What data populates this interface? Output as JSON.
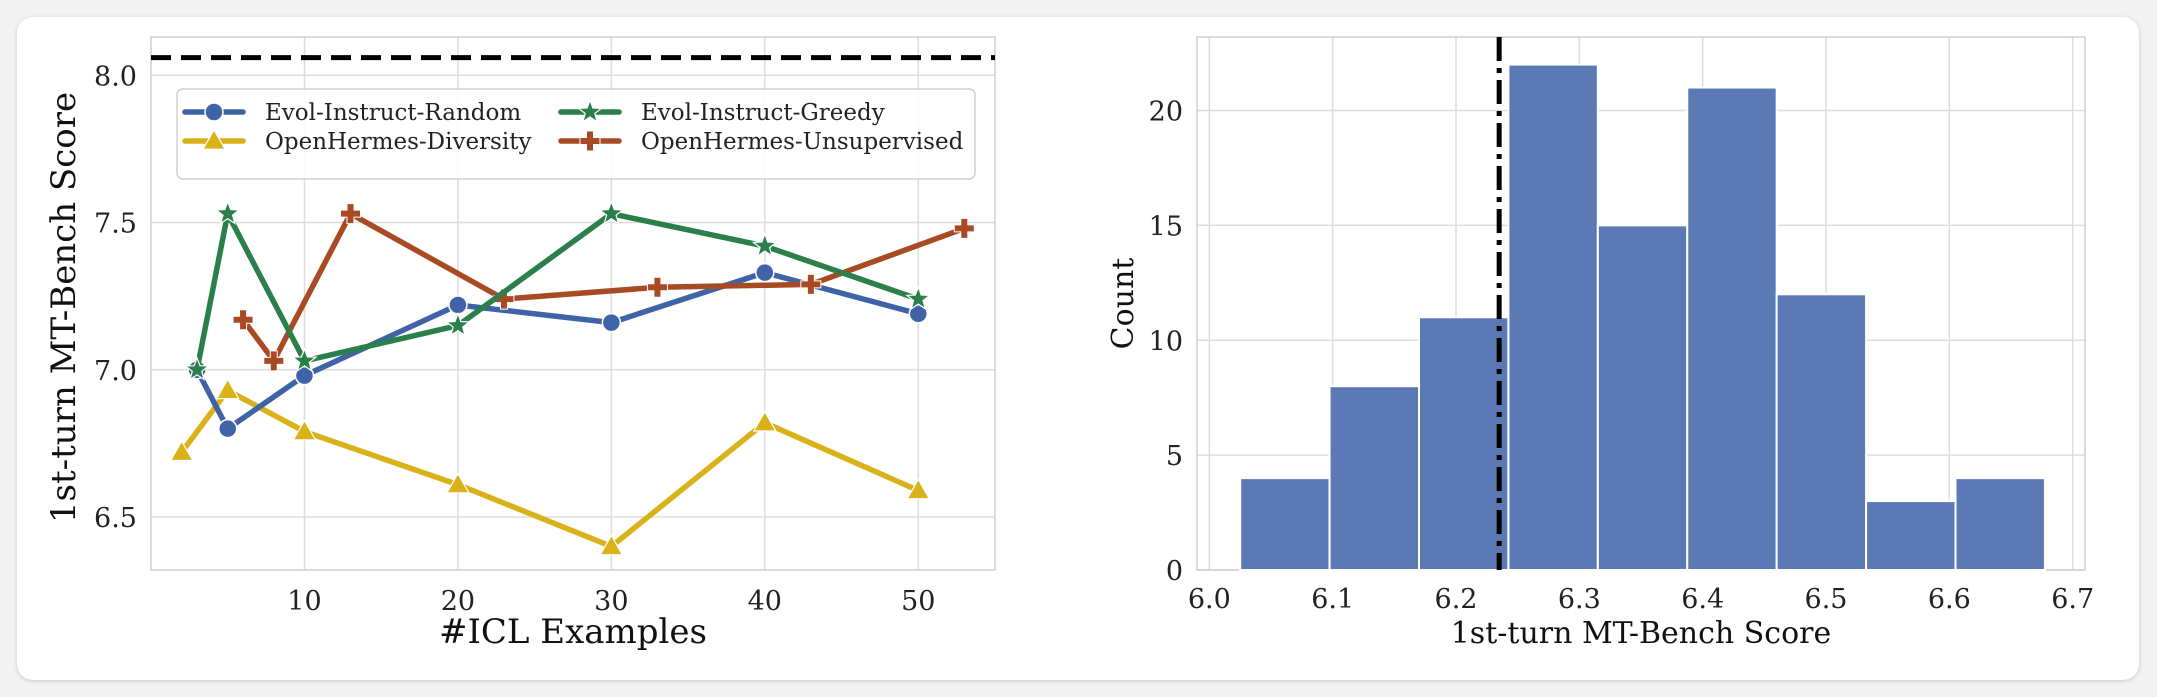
{
  "chart_data": [
    {
      "type": "line",
      "title": "",
      "xlabel": "#ICL Examples",
      "ylabel": "1st-turn MT-Bench Score",
      "xlim": [
        0,
        55
      ],
      "ylim": [
        6.32,
        8.13
      ],
      "xticks": [
        10,
        20,
        30,
        40,
        50
      ],
      "xtick_labels": [
        "10",
        "20",
        "30",
        "40",
        "50"
      ],
      "yticks": [
        6.5,
        7.0,
        7.5,
        8.0
      ],
      "ytick_labels": [
        "6.5",
        "7.0",
        "7.5",
        "8.0"
      ],
      "grid": true,
      "legend_position": "top",
      "reference_line": {
        "orientation": "horizontal",
        "y": 8.06,
        "style": "dashed",
        "color": "#000000"
      },
      "series": [
        {
          "name": "Evol-Instruct-Random",
          "color": "#4063a8",
          "marker": "circle",
          "x": [
            3,
            5,
            10,
            20,
            30,
            40,
            50
          ],
          "y": [
            7.0,
            6.8,
            6.98,
            7.22,
            7.16,
            7.33,
            7.19
          ]
        },
        {
          "name": "Evol-Instruct-Greedy",
          "color": "#2a7f4a",
          "marker": "star",
          "x": [
            3,
            5,
            10,
            20,
            30,
            40,
            50
          ],
          "y": [
            7.0,
            7.53,
            7.03,
            7.15,
            7.53,
            7.42,
            7.24
          ]
        },
        {
          "name": "OpenHermes-Diversity",
          "color": "#d9b21a",
          "marker": "triangle",
          "x": [
            2,
            5,
            10,
            20,
            30,
            40,
            50
          ],
          "y": [
            6.72,
            6.93,
            6.79,
            6.61,
            6.4,
            6.82,
            6.59
          ]
        },
        {
          "name": "OpenHermes-Unsupervised",
          "color": "#a84a24",
          "marker": "plus",
          "x": [
            6,
            8,
            13,
            23,
            33,
            43,
            53
          ],
          "y": [
            7.17,
            7.03,
            7.53,
            7.24,
            7.28,
            7.29,
            7.48
          ]
        }
      ]
    },
    {
      "type": "bar",
      "subtype": "histogram",
      "title": "",
      "xlabel": "1st-turn MT-Bench Score",
      "ylabel": "Count",
      "xlim": [
        5.99,
        6.71
      ],
      "ylim": [
        0,
        23.2
      ],
      "xticks": [
        6.0,
        6.1,
        6.2,
        6.3,
        6.4,
        6.5,
        6.6,
        6.7
      ],
      "xtick_labels": [
        "6.0",
        "6.1",
        "6.2",
        "6.3",
        "6.4",
        "6.5",
        "6.6",
        "6.7"
      ],
      "yticks": [
        0,
        5,
        10,
        15,
        20
      ],
      "ytick_labels": [
        "0",
        "5",
        "10",
        "15",
        "20"
      ],
      "grid": true,
      "bar_color": "#5b7ab5",
      "bin_edges": [
        6.025,
        6.0975,
        6.17,
        6.2425,
        6.315,
        6.3875,
        6.46,
        6.5325,
        6.605,
        6.6775
      ],
      "counts": [
        4,
        8,
        11,
        22,
        15,
        21,
        12,
        3,
        4
      ],
      "reference_line": {
        "orientation": "vertical",
        "x": 6.235,
        "style": "dashdot",
        "color": "#000000"
      }
    }
  ]
}
